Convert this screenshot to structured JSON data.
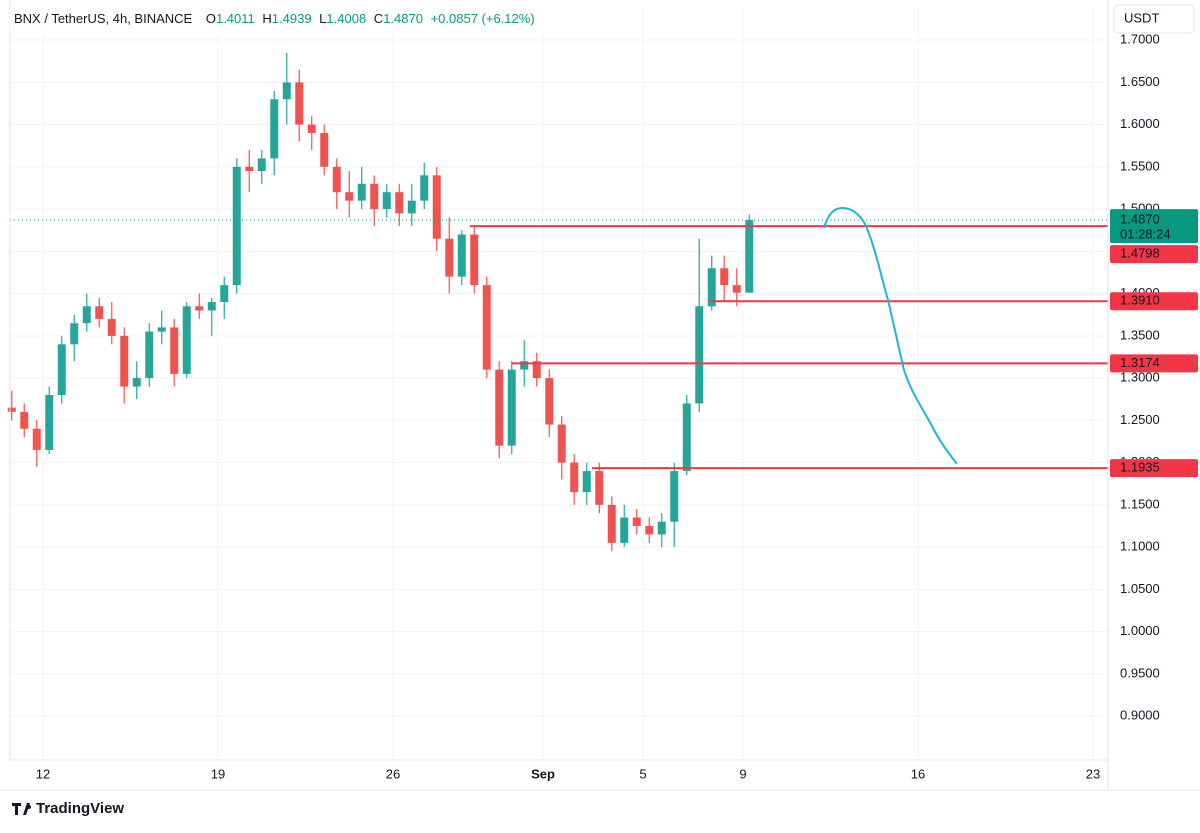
{
  "chart_data": {
    "type": "candlestick",
    "title": "BNX / TetherUS, 4h, BINANCE",
    "header": {
      "open_label": "O",
      "open": "1.4011",
      "high_label": "H",
      "high": "1.4939",
      "low_label": "L",
      "low": "1.4008",
      "close_label": "C",
      "close": "1.4870",
      "change": "+0.0857 (+6.12%)"
    },
    "currency": "USDT",
    "brand": "TradingView",
    "up_color": "#26a69a",
    "down_color": "#ef5350",
    "grid": true,
    "x": [
      10.75,
      11.25,
      11.75,
      12.25,
      12.75,
      13.25,
      13.75,
      14.25,
      14.75,
      15.25,
      15.75,
      16.25,
      16.75,
      17.25,
      17.75,
      18.25,
      18.75,
      19.25,
      19.75,
      20.25,
      20.75,
      21.25,
      21.75,
      22.25,
      22.75,
      23.25,
      23.75,
      24.25,
      24.75,
      25.25,
      25.75,
      26.25,
      26.75,
      27.25,
      27.75,
      28.25,
      28.75,
      29.25,
      29.75,
      30.25,
      30.75,
      31.25,
      31.75,
      32.25,
      32.75,
      33.25,
      33.75,
      34.25,
      34.75,
      35.25,
      35.75,
      36.25,
      36.75,
      37.25,
      37.75,
      38.25,
      38.75,
      39.25,
      39.75,
      40.25
    ],
    "ohlc": [
      [
        1.265,
        1.285,
        1.25,
        1.26
      ],
      [
        1.26,
        1.27,
        1.23,
        1.24
      ],
      [
        1.24,
        1.25,
        1.195,
        1.215
      ],
      [
        1.215,
        1.29,
        1.21,
        1.28
      ],
      [
        1.28,
        1.35,
        1.27,
        1.34
      ],
      [
        1.34,
        1.375,
        1.32,
        1.365
      ],
      [
        1.365,
        1.4,
        1.355,
        1.385
      ],
      [
        1.385,
        1.395,
        1.36,
        1.37
      ],
      [
        1.37,
        1.39,
        1.34,
        1.35
      ],
      [
        1.35,
        1.36,
        1.27,
        1.29
      ],
      [
        1.29,
        1.32,
        1.275,
        1.3
      ],
      [
        1.3,
        1.365,
        1.29,
        1.355
      ],
      [
        1.355,
        1.38,
        1.34,
        1.36
      ],
      [
        1.36,
        1.37,
        1.29,
        1.305
      ],
      [
        1.305,
        1.39,
        1.3,
        1.385
      ],
      [
        1.385,
        1.4,
        1.37,
        1.38
      ],
      [
        1.38,
        1.395,
        1.35,
        1.39
      ],
      [
        1.39,
        1.42,
        1.37,
        1.41
      ],
      [
        1.41,
        1.56,
        1.4,
        1.55
      ],
      [
        1.55,
        1.57,
        1.52,
        1.545
      ],
      [
        1.545,
        1.57,
        1.53,
        1.56
      ],
      [
        1.56,
        1.64,
        1.54,
        1.63
      ],
      [
        1.63,
        1.685,
        1.6,
        1.65
      ],
      [
        1.65,
        1.665,
        1.58,
        1.6
      ],
      [
        1.6,
        1.61,
        1.57,
        1.59
      ],
      [
        1.59,
        1.6,
        1.54,
        1.55
      ],
      [
        1.55,
        1.56,
        1.5,
        1.52
      ],
      [
        1.52,
        1.545,
        1.49,
        1.51
      ],
      [
        1.51,
        1.55,
        1.5,
        1.53
      ],
      [
        1.53,
        1.54,
        1.48,
        1.5
      ],
      [
        1.5,
        1.53,
        1.49,
        1.52
      ],
      [
        1.52,
        1.53,
        1.48,
        1.495
      ],
      [
        1.495,
        1.53,
        1.48,
        1.51
      ],
      [
        1.51,
        1.555,
        1.5,
        1.54
      ],
      [
        1.54,
        1.55,
        1.45,
        1.465
      ],
      [
        1.465,
        1.49,
        1.4,
        1.42
      ],
      [
        1.42,
        1.475,
        1.41,
        1.47
      ],
      [
        1.47,
        1.48,
        1.4,
        1.41
      ],
      [
        1.41,
        1.42,
        1.3,
        1.31
      ],
      [
        1.31,
        1.32,
        1.205,
        1.22
      ],
      [
        1.22,
        1.32,
        1.21,
        1.31
      ],
      [
        1.31,
        1.345,
        1.29,
        1.32
      ],
      [
        1.32,
        1.33,
        1.29,
        1.3
      ],
      [
        1.3,
        1.31,
        1.23,
        1.245
      ],
      [
        1.245,
        1.255,
        1.18,
        1.2
      ],
      [
        1.2,
        1.21,
        1.15,
        1.165
      ],
      [
        1.165,
        1.2,
        1.15,
        1.19
      ],
      [
        1.19,
        1.2,
        1.14,
        1.15
      ],
      [
        1.15,
        1.16,
        1.095,
        1.105
      ],
      [
        1.105,
        1.15,
        1.1,
        1.135
      ],
      [
        1.135,
        1.145,
        1.115,
        1.125
      ],
      [
        1.125,
        1.135,
        1.105,
        1.115
      ],
      [
        1.115,
        1.14,
        1.1,
        1.13
      ],
      [
        1.13,
        1.2,
        1.1,
        1.19
      ],
      [
        1.19,
        1.28,
        1.185,
        1.27
      ],
      [
        1.27,
        1.465,
        1.26,
        1.385
      ],
      [
        1.385,
        1.445,
        1.38,
        1.43
      ],
      [
        1.43,
        1.445,
        1.39,
        1.41
      ],
      [
        1.41,
        1.43,
        1.385,
        1.401
      ],
      [
        1.4011,
        1.4939,
        1.4008,
        1.487
      ]
    ],
    "xlim": [
      10.68,
      54.6
    ],
    "xticks": [
      {
        "value": 12,
        "label": "12"
      },
      {
        "value": 19,
        "label": "19"
      },
      {
        "value": 26,
        "label": "26"
      },
      {
        "value": 32,
        "label": "Sep"
      },
      {
        "value": 36,
        "label": "5"
      },
      {
        "value": 40,
        "label": "9"
      },
      {
        "value": 47,
        "label": "16"
      },
      {
        "value": 54,
        "label": "23"
      }
    ],
    "ylim": [
      0.848,
      1.738
    ],
    "yticks": [
      {
        "value": 0.9,
        "label": "0.9000"
      },
      {
        "value": 0.95,
        "label": "0.9500"
      },
      {
        "value": 1.0,
        "label": "1.0000"
      },
      {
        "value": 1.05,
        "label": "1.0500"
      },
      {
        "value": 1.1,
        "label": "1.1000"
      },
      {
        "value": 1.15,
        "label": "1.1500"
      },
      {
        "value": 1.2,
        "label": "1.2000"
      },
      {
        "value": 1.25,
        "label": "1.2500"
      },
      {
        "value": 1.3,
        "label": "1.3000"
      },
      {
        "value": 1.35,
        "label": "1.3500"
      },
      {
        "value": 1.4,
        "label": "1.4000"
      },
      {
        "value": 1.45,
        "label": "1.4500"
      },
      {
        "value": 1.5,
        "label": "1.5000"
      },
      {
        "value": 1.55,
        "label": "1.5500"
      },
      {
        "value": 1.6,
        "label": "1.6000"
      },
      {
        "value": 1.65,
        "label": "1.6500"
      },
      {
        "value": 1.7,
        "label": "1.7000"
      }
    ],
    "current_price": {
      "value": 1.487,
      "label": "1.4870",
      "countdown": "01:28:24",
      "color": "#089981"
    },
    "levels": [
      {
        "value": 1.4798,
        "label": "1.4798"
      },
      {
        "value": 1.391,
        "label": "1.3910"
      },
      {
        "value": 1.3174,
        "label": "1.3174"
      },
      {
        "value": 1.1935,
        "label": "1.1935"
      }
    ],
    "level_color": "#f23645"
  }
}
